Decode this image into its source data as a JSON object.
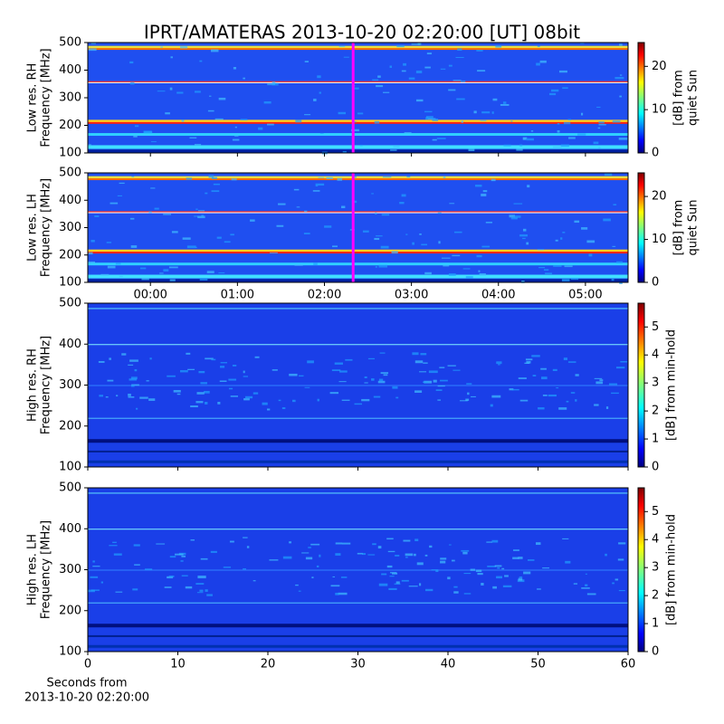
{
  "title": "IPRT/AMATERAS 2013-10-20 02:20:00 [UT]   08bit",
  "chart_data": [
    {
      "type": "heatmap",
      "ylabel": [
        "Low res. RH",
        "Frequency [MHz]"
      ],
      "xlim": [
        -0.72,
        5.49
      ],
      "ylim": [
        100,
        500
      ],
      "yticks": [
        100,
        200,
        300,
        400,
        500
      ],
      "marker": 2.33,
      "marker_color": "#ff00ff",
      "colormap": "jet",
      "clim": [
        0,
        25.5
      ],
      "cticks": [
        0,
        10,
        20
      ],
      "clabel": [
        "[dB] from",
        "quiet Sun"
      ]
    },
    {
      "type": "heatmap",
      "ylabel": [
        "Low res. LH",
        "Frequency [MHz]"
      ],
      "xlim": [
        -0.72,
        5.49
      ],
      "ylim": [
        100,
        500
      ],
      "yticks": [
        100,
        200,
        300,
        400,
        500
      ],
      "xticks": [
        {
          "value": 0,
          "label": "00:00"
        },
        {
          "value": 1,
          "label": "01:00"
        },
        {
          "value": 2,
          "label": "02:00"
        },
        {
          "value": 3,
          "label": "03:00"
        },
        {
          "value": 4,
          "label": "04:00"
        },
        {
          "value": 5,
          "label": "05:00"
        }
      ],
      "marker": 2.33,
      "marker_color": "#ff00ff",
      "colormap": "jet",
      "clim": [
        0,
        25.5
      ],
      "cticks": [
        0,
        10,
        20
      ],
      "clabel": [
        "[dB] from",
        "quiet Sun"
      ]
    },
    {
      "type": "heatmap",
      "ylabel": [
        "High res. RH",
        "Frequency [MHz]"
      ],
      "xlim": [
        0,
        60
      ],
      "ylim": [
        100,
        500
      ],
      "yticks": [
        100,
        200,
        300,
        400,
        500
      ],
      "colormap": "jet",
      "clim": [
        0,
        5.85
      ],
      "cticks": [
        0,
        1,
        2,
        3,
        4,
        5
      ],
      "clabel": [
        "[dB] from min-hold"
      ]
    },
    {
      "type": "heatmap",
      "ylabel": [
        "High res. LH",
        "Frequency [MHz]"
      ],
      "xlim": [
        0,
        60
      ],
      "ylim": [
        100,
        500
      ],
      "yticks": [
        100,
        200,
        300,
        400,
        500
      ],
      "xticks": [
        0,
        10,
        20,
        30,
        40,
        50,
        60
      ],
      "xlabel": [
        "Seconds from",
        "2013-10-20 02:20:00"
      ],
      "colormap": "jet",
      "clim": [
        0,
        5.85
      ],
      "cticks": [
        0,
        1,
        2,
        3,
        4,
        5
      ],
      "clabel": [
        "[dB] from min-hold"
      ]
    }
  ]
}
